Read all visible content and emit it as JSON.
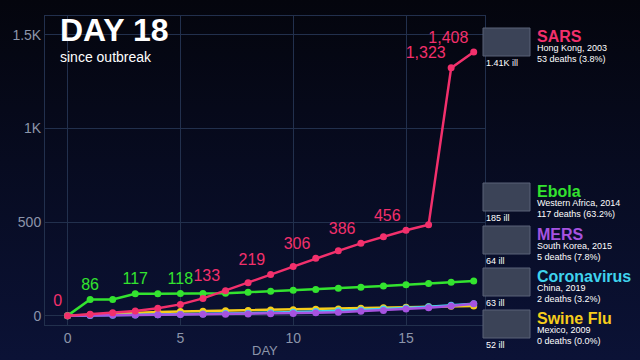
{
  "chart_data": {
    "type": "line",
    "title": "DAY 18",
    "subtitle": "since outbreak",
    "x_label": "DAY",
    "x": [
      0,
      1,
      2,
      3,
      4,
      5,
      6,
      7,
      8,
      9,
      10,
      11,
      12,
      13,
      14,
      15,
      16,
      17,
      18
    ],
    "xlim": [
      -1,
      18.5
    ],
    "xticks": [
      0,
      5,
      10,
      15
    ],
    "ylim": [
      -50,
      1600
    ],
    "yticks": [
      0,
      500,
      {
        "value": 1000,
        "label": "1K"
      },
      {
        "value": 1500,
        "label": "1.5K"
      }
    ],
    "grid": true,
    "data_labels": true,
    "marker": "circle",
    "tick_labels": true,
    "series": [
      {
        "name": "SARS",
        "place": "Hong Kong, 2003",
        "ill": "1.41K ill",
        "deaths": "53 deaths (3.8%)",
        "color": "#f2306c",
        "values": [
          0,
          8,
          15,
          25,
          40,
          60,
          92,
          133,
          176,
          219,
          262,
          306,
          346,
          386,
          421,
          456,
          485,
          1323,
          1408
        ],
        "value_labels": [
          "0",
          null,
          null,
          null,
          null,
          null,
          null,
          "133",
          null,
          "219",
          null,
          "306",
          null,
          "386",
          null,
          "456",
          null,
          "1,323",
          "1,408"
        ]
      },
      {
        "name": "Ebola",
        "place": "Western Africa, 2014",
        "ill": "185 ill",
        "deaths": "117 deaths (63.2%)",
        "color": "#33e32f",
        "values": [
          0,
          86,
          86,
          117,
          117,
          118,
          118,
          120,
          125,
          130,
          135,
          140,
          146,
          152,
          158,
          165,
          172,
          178,
          185
        ],
        "value_labels": [
          null,
          "86",
          null,
          "117",
          null,
          "118",
          null,
          null,
          null,
          null,
          null,
          null,
          null,
          null,
          null,
          null,
          null,
          null,
          null
        ]
      },
      {
        "name": "MERS",
        "place": "South Korea, 2015",
        "ill": "64 ill",
        "deaths": "5 deaths (7.8%)",
        "color": "#a653e0",
        "values": [
          0,
          2,
          4,
          4,
          5,
          6,
          7,
          8,
          9,
          10,
          12,
          15,
          18,
          23,
          28,
          35,
          42,
          52,
          64
        ]
      },
      {
        "name": "Coronavirus",
        "place": "China, 2019",
        "ill": "63 ill",
        "deaths": "2 deaths (3.2%)",
        "color": "#3fd3ee",
        "values": [
          0,
          1,
          2,
          3,
          5,
          7,
          9,
          11,
          13,
          15,
          18,
          22,
          26,
          30,
          35,
          41,
          47,
          55,
          63
        ]
      },
      {
        "name": "Swine Flu",
        "place": "Mexico, 2009",
        "ill": "52 ill",
        "deaths": "0 deaths (0.0%)",
        "color": "#f6cd1b",
        "values": [
          0,
          5,
          12,
          18,
          20,
          22,
          24,
          26,
          28,
          30,
          32,
          34,
          36,
          39,
          42,
          45,
          47,
          50,
          52
        ]
      }
    ]
  }
}
